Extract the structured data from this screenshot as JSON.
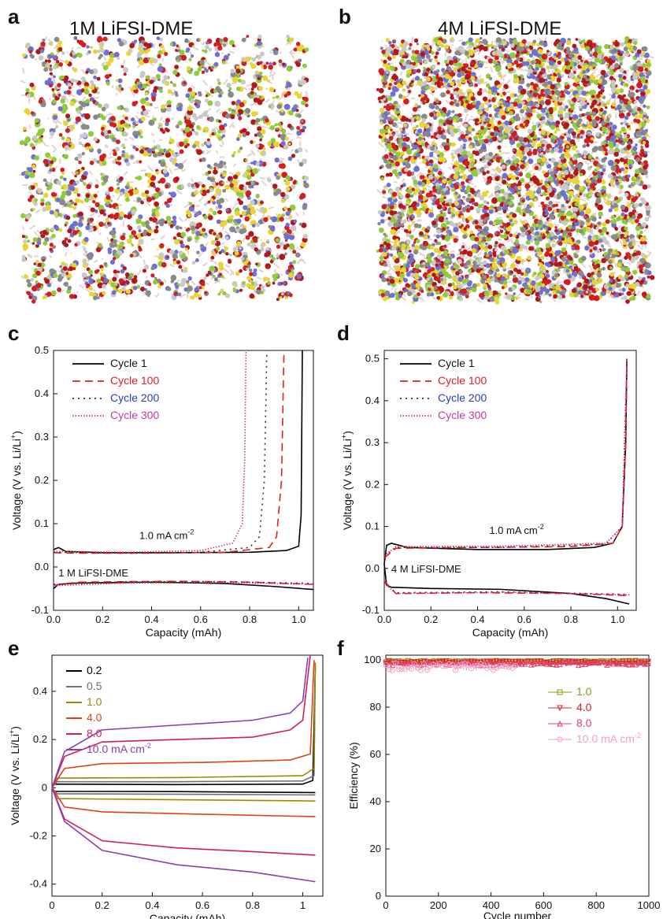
{
  "panels": {
    "a": {
      "label": "a",
      "title": "1M LiFSI-DME"
    },
    "b": {
      "label": "b",
      "title": "4M LiFSI-DME"
    },
    "c": {
      "label": "c"
    },
    "d": {
      "label": "d"
    },
    "e": {
      "label": "e"
    },
    "f": {
      "label": "f"
    }
  },
  "molecule_colors": [
    "#d21f1f",
    "#8a8a8a",
    "#c9c9c9",
    "#e8d534",
    "#8fcc3a",
    "#6f6fd6",
    "#b0181d"
  ],
  "chart_data": [
    {
      "id": "c",
      "type": "line",
      "xlabel": "Capacity (mAh)",
      "ylabel": "Voltage (V vs. Li/Li",
      "ylabel_sup": "+",
      "ylabel_end": ")",
      "xlim": [
        0.0,
        1.06
      ],
      "ylim": [
        -0.1,
        0.5
      ],
      "xticks": [
        "0.0",
        "0.2",
        "0.4",
        "0.6",
        "0.8",
        "1.0"
      ],
      "xtick_values": [
        0.0,
        0.2,
        0.4,
        0.6,
        0.8,
        1.0
      ],
      "yticks": [
        "-0.1",
        "0.0",
        "0.1",
        "0.2",
        "0.3",
        "0.4",
        "0.5"
      ],
      "ytick_values": [
        -0.1,
        0.0,
        0.1,
        0.2,
        0.3,
        0.4,
        0.5
      ],
      "annotations": {
        "current": "1.0 mA cm",
        "current_sup": "-2",
        "electrolyte": "1 M LiFSI-DME"
      },
      "legend_position": "top-left",
      "series": [
        {
          "name": "Cycle 1",
          "color": "#000000",
          "dash": "solid",
          "charge": [
            [
              0.0,
              0.04
            ],
            [
              0.02,
              0.045
            ],
            [
              0.05,
              0.036
            ],
            [
              0.2,
              0.033
            ],
            [
              0.5,
              0.033
            ],
            [
              0.8,
              0.034
            ],
            [
              0.95,
              0.038
            ],
            [
              1.0,
              0.048
            ],
            [
              1.01,
              0.12
            ],
            [
              1.015,
              0.5
            ]
          ],
          "discharge": [
            [
              0.0,
              -0.05
            ],
            [
              0.02,
              -0.04
            ],
            [
              0.1,
              -0.037
            ],
            [
              0.4,
              -0.035
            ],
            [
              0.7,
              -0.038
            ],
            [
              0.9,
              -0.045
            ],
            [
              1.06,
              -0.052
            ]
          ]
        },
        {
          "name": "Cycle 100",
          "color": "#e02020",
          "dash": "10,6",
          "charge": [
            [
              0.0,
              0.033
            ],
            [
              0.1,
              0.032
            ],
            [
              0.4,
              0.032
            ],
            [
              0.7,
              0.034
            ],
            [
              0.88,
              0.045
            ],
            [
              0.91,
              0.07
            ],
            [
              0.93,
              0.2
            ],
            [
              0.94,
              0.5
            ]
          ],
          "discharge": [
            [
              0.0,
              -0.042
            ],
            [
              0.1,
              -0.035
            ],
            [
              0.5,
              -0.033
            ],
            [
              0.8,
              -0.035
            ],
            [
              1.06,
              -0.04
            ]
          ]
        },
        {
          "name": "Cycle 200",
          "color": "#333333",
          "dash": "2,5",
          "charge": [
            [
              0.0,
              0.034
            ],
            [
              0.3,
              0.032
            ],
            [
              0.6,
              0.034
            ],
            [
              0.8,
              0.045
            ],
            [
              0.84,
              0.07
            ],
            [
              0.86,
              0.2
            ],
            [
              0.87,
              0.5
            ]
          ],
          "discharge": [
            [
              0.0,
              -0.04
            ],
            [
              0.3,
              -0.034
            ],
            [
              0.7,
              -0.034
            ],
            [
              1.06,
              -0.038
            ]
          ]
        },
        {
          "name": "Cycle 300",
          "color": "#e0307a",
          "dash": "1.5,2",
          "charge": [
            [
              0.0,
              0.036
            ],
            [
              0.3,
              0.034
            ],
            [
              0.6,
              0.038
            ],
            [
              0.73,
              0.055
            ],
            [
              0.77,
              0.1
            ],
            [
              0.78,
              0.25
            ],
            [
              0.785,
              0.5
            ]
          ],
          "discharge": [
            [
              0.0,
              -0.043
            ],
            [
              0.3,
              -0.037
            ],
            [
              0.7,
              -0.036
            ],
            [
              1.06,
              -0.04
            ]
          ]
        }
      ],
      "legend_text_colors": [
        "#111111",
        "#e02020",
        "#2a3fb0",
        "#c03aa8"
      ]
    },
    {
      "id": "d",
      "type": "line",
      "xlabel": "Capacity (mAh)",
      "ylabel": "Voltage (V vs. Li/Li",
      "ylabel_sup": "+",
      "ylabel_end": ")",
      "xlim": [
        0.0,
        1.08
      ],
      "ylim": [
        -0.1,
        0.52
      ],
      "xticks": [
        "0.0",
        "0.2",
        "0.4",
        "0.6",
        "0.8",
        "1.0"
      ],
      "xtick_values": [
        0.0,
        0.2,
        0.4,
        0.6,
        0.8,
        1.0
      ],
      "yticks": [
        "-0.1",
        "0.0",
        "0.1",
        "0.2",
        "0.3",
        "0.4",
        "0.5"
      ],
      "ytick_values": [
        -0.1,
        0.0,
        0.1,
        0.2,
        0.3,
        0.4,
        0.5
      ],
      "annotations": {
        "current": "1.0 mA cm",
        "current_sup": "-2",
        "electrolyte": "4 M LiFSI-DME"
      },
      "legend_position": "top-left",
      "series": [
        {
          "name": "Cycle 1",
          "color": "#000000",
          "dash": "solid",
          "charge": [
            [
              0.0,
              0.01
            ],
            [
              0.01,
              0.055
            ],
            [
              0.03,
              0.06
            ],
            [
              0.1,
              0.05
            ],
            [
              0.4,
              0.045
            ],
            [
              0.7,
              0.045
            ],
            [
              0.9,
              0.05
            ],
            [
              0.98,
              0.06
            ],
            [
              1.02,
              0.1
            ],
            [
              1.035,
              0.3
            ],
            [
              1.04,
              0.5
            ]
          ],
          "discharge": [
            [
              0.0,
              0.01
            ],
            [
              0.01,
              -0.04
            ],
            [
              0.03,
              -0.045
            ],
            [
              0.2,
              -0.048
            ],
            [
              0.5,
              -0.05
            ],
            [
              0.8,
              -0.06
            ],
            [
              0.95,
              -0.072
            ],
            [
              1.05,
              -0.085
            ]
          ]
        },
        {
          "name": "Cycle 100",
          "color": "#e02020",
          "dash": "10,6",
          "charge": [
            [
              0.0,
              0.025
            ],
            [
              0.05,
              0.048
            ],
            [
              0.4,
              0.05
            ],
            [
              0.8,
              0.052
            ],
            [
              0.98,
              0.06
            ],
            [
              1.02,
              0.1
            ],
            [
              1.035,
              0.3
            ],
            [
              1.04,
              0.5
            ]
          ],
          "discharge": [
            [
              0.0,
              -0.03
            ],
            [
              0.05,
              -0.06
            ],
            [
              0.4,
              -0.058
            ],
            [
              0.8,
              -0.06
            ],
            [
              1.05,
              -0.065
            ]
          ]
        },
        {
          "name": "Cycle 200",
          "color": "#333333",
          "dash": "2,5",
          "charge": [
            [
              0.0,
              0.03
            ],
            [
              0.05,
              0.05
            ],
            [
              0.5,
              0.05
            ],
            [
              0.95,
              0.058
            ],
            [
              1.02,
              0.1
            ],
            [
              1.04,
              0.5
            ]
          ],
          "discharge": [
            [
              0.0,
              -0.035
            ],
            [
              0.05,
              -0.058
            ],
            [
              0.5,
              -0.056
            ],
            [
              1.05,
              -0.062
            ]
          ]
        },
        {
          "name": "Cycle 300",
          "color": "#e0307a",
          "dash": "1.5,2",
          "charge": [
            [
              0.0,
              0.03
            ],
            [
              0.05,
              0.052
            ],
            [
              0.5,
              0.053
            ],
            [
              0.95,
              0.06
            ],
            [
              1.02,
              0.1
            ],
            [
              1.04,
              0.5
            ]
          ],
          "discharge": [
            [
              0.0,
              -0.035
            ],
            [
              0.05,
              -0.06
            ],
            [
              0.5,
              -0.057
            ],
            [
              1.05,
              -0.063
            ]
          ]
        }
      ],
      "legend_text_colors": [
        "#111111",
        "#e02020",
        "#2a3fb0",
        "#c03aa8"
      ]
    },
    {
      "id": "e",
      "type": "line",
      "xlabel": "Capacity (mAh)",
      "ylabel": "Voltage (V vs. Li/Li",
      "ylabel_sup": "+",
      "ylabel_end": ")",
      "xlim": [
        0.0,
        1.08
      ],
      "ylim": [
        -0.45,
        0.55
      ],
      "xticks": [
        "0",
        "0.2",
        "0.4",
        "0.6",
        "0.8",
        "1"
      ],
      "xtick_values": [
        0.0,
        0.2,
        0.4,
        0.6,
        0.8,
        1.0
      ],
      "yticks": [
        "-0.4",
        "-0.2",
        "0",
        "0.2",
        "0.4"
      ],
      "ytick_values": [
        -0.4,
        -0.2,
        0.0,
        0.2,
        0.4
      ],
      "legend_position": "top-left",
      "legend_suffix": " mA cm",
      "legend_suffix_sup": "-2",
      "series": [
        {
          "name": "0.2",
          "color": "#000000",
          "charge": [
            [
              0.0,
              0.0
            ],
            [
              0.01,
              0.015
            ],
            [
              0.5,
              0.013
            ],
            [
              1.0,
              0.015
            ],
            [
              1.04,
              0.03
            ],
            [
              1.05,
              0.5
            ]
          ],
          "discharge": [
            [
              0.0,
              0.0
            ],
            [
              0.01,
              -0.015
            ],
            [
              0.5,
              -0.016
            ],
            [
              1.05,
              -0.02
            ]
          ]
        },
        {
          "name": "0.5",
          "color": "#707070",
          "charge": [
            [
              0.0,
              0.0
            ],
            [
              0.02,
              0.025
            ],
            [
              0.5,
              0.025
            ],
            [
              1.0,
              0.028
            ],
            [
              1.045,
              0.05
            ],
            [
              1.05,
              0.51
            ]
          ],
          "discharge": [
            [
              0.0,
              0.0
            ],
            [
              0.02,
              -0.025
            ],
            [
              0.5,
              -0.027
            ],
            [
              1.05,
              -0.03
            ]
          ]
        },
        {
          "name": "1.0",
          "color": "#9a8a00",
          "charge": [
            [
              0.0,
              0.0
            ],
            [
              0.02,
              0.04
            ],
            [
              0.5,
              0.042
            ],
            [
              1.0,
              0.05
            ],
            [
              1.045,
              0.08
            ],
            [
              1.05,
              0.52
            ]
          ],
          "discharge": [
            [
              0.0,
              0.0
            ],
            [
              0.02,
              -0.045
            ],
            [
              0.5,
              -0.05
            ],
            [
              1.05,
              -0.055
            ]
          ]
        },
        {
          "name": "4.0",
          "color": "#e0401a",
          "charge": [
            [
              0.0,
              0.0
            ],
            [
              0.05,
              0.08
            ],
            [
              0.2,
              0.1
            ],
            [
              0.6,
              0.105
            ],
            [
              0.95,
              0.115
            ],
            [
              1.03,
              0.14
            ],
            [
              1.045,
              0.53
            ]
          ],
          "discharge": [
            [
              0.0,
              0.0
            ],
            [
              0.05,
              -0.08
            ],
            [
              0.2,
              -0.1
            ],
            [
              0.6,
              -0.11
            ],
            [
              1.05,
              -0.12
            ]
          ]
        },
        {
          "name": "8.0",
          "color": "#d0205a",
          "charge": [
            [
              0.0,
              0.0
            ],
            [
              0.05,
              0.13
            ],
            [
              0.2,
              0.19
            ],
            [
              0.5,
              0.2
            ],
            [
              0.8,
              0.21
            ],
            [
              0.95,
              0.24
            ],
            [
              1.0,
              0.28
            ],
            [
              1.03,
              0.55
            ]
          ],
          "discharge": [
            [
              0.0,
              0.0
            ],
            [
              0.05,
              -0.13
            ],
            [
              0.2,
              -0.22
            ],
            [
              0.5,
              -0.25
            ],
            [
              0.8,
              -0.265
            ],
            [
              1.05,
              -0.28
            ]
          ]
        },
        {
          "name": "10.0",
          "color": "#8a3fb0",
          "charge": [
            [
              0.0,
              0.0
            ],
            [
              0.05,
              0.15
            ],
            [
              0.2,
              0.24
            ],
            [
              0.5,
              0.26
            ],
            [
              0.8,
              0.28
            ],
            [
              0.95,
              0.31
            ],
            [
              1.0,
              0.36
            ],
            [
              1.02,
              0.54
            ]
          ],
          "discharge": [
            [
              0.0,
              0.0
            ],
            [
              0.05,
              -0.14
            ],
            [
              0.2,
              -0.26
            ],
            [
              0.5,
              -0.32
            ],
            [
              0.8,
              -0.35
            ],
            [
              1.05,
              -0.39
            ]
          ]
        }
      ]
    },
    {
      "id": "f",
      "type": "scatter",
      "xlabel": "Cycle number",
      "ylabel": "Efficiency (%)",
      "xlim": [
        0,
        1000
      ],
      "ylim": [
        0,
        102
      ],
      "xticks": [
        "0",
        "200",
        "400",
        "600",
        "800",
        "1000"
      ],
      "xtick_values": [
        0,
        200,
        400,
        600,
        800,
        1000
      ],
      "yticks": [
        "0",
        "20",
        "40",
        "60",
        "80",
        "100"
      ],
      "ytick_values": [
        0,
        20,
        40,
        60,
        80,
        100
      ],
      "legend_position": "center-right",
      "legend_suffix": " mA cm",
      "legend_suffix_sup": "-2",
      "series": [
        {
          "name": "1.0",
          "color": "#8a9a10",
          "marker": "square",
          "range": [
            1,
            1000
          ],
          "mean": 99.3,
          "spread": 0.3
        },
        {
          "name": "4.0",
          "color": "#e02020",
          "marker": "triangle-down",
          "range": [
            1,
            1000
          ],
          "mean": 99.0,
          "spread": 0.6
        },
        {
          "name": "8.0",
          "color": "#e04070",
          "marker": "triangle-up",
          "range": [
            1,
            1000
          ],
          "mean": 98.6,
          "spread": 1.0
        },
        {
          "name": "10.0",
          "color": "#f0a0c8",
          "marker": "circle",
          "range": [
            1,
            500
          ],
          "mean": 97.2,
          "spread": 1.6
        }
      ]
    }
  ]
}
